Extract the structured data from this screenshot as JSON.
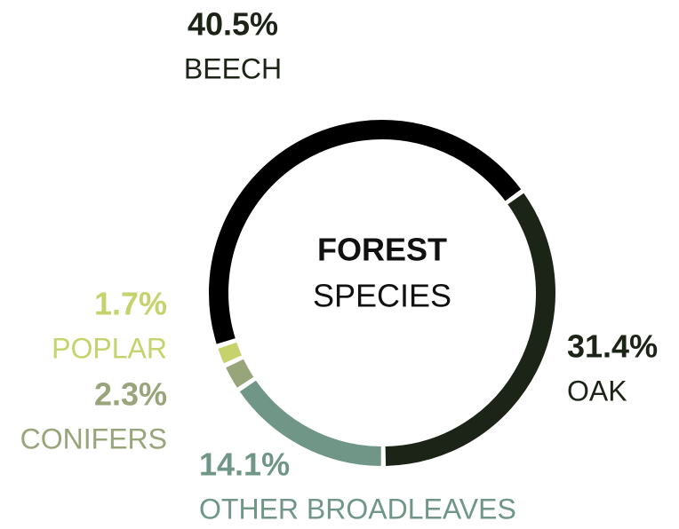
{
  "chart_data": {
    "type": "donut",
    "title": "FOREST",
    "subtitle": "SPECIES",
    "categories": [
      "BEECH",
      "OAK",
      "OTHER BROADLEAVES",
      "CONIFERS",
      "POPLAR"
    ],
    "values": [
      40.5,
      31.4,
      14.1,
      2.3,
      1.7
    ],
    "value_labels": [
      "40.5%",
      "31.4%",
      "14.1%",
      "2.3%",
      "1.7%"
    ],
    "colors": [
      "#000000",
      "#1b2417",
      "#6f9686",
      "#98a47a",
      "#c6d26b"
    ]
  }
}
